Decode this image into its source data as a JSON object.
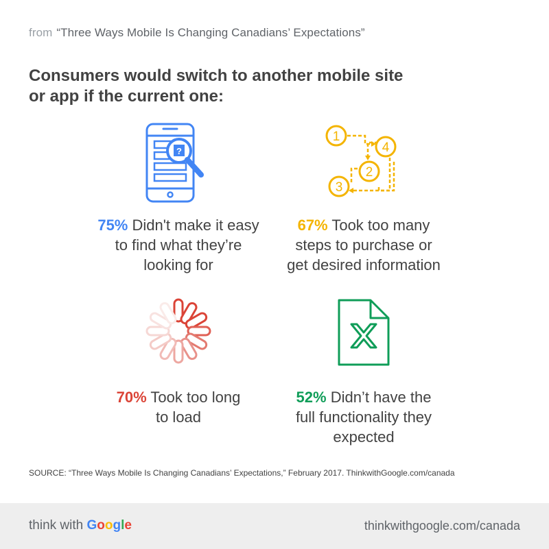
{
  "header": {
    "prefix": "from",
    "source_title": "“Three Ways Mobile Is Changing Canadians’ Expectations”",
    "headline_line1": "Consumers would switch to another mobile site",
    "headline_line2": "or app if the current one:"
  },
  "stats": [
    {
      "percent": "75%",
      "line1_rest": " Didn't make it easy",
      "line2": "to find what they’re",
      "line3": "looking for",
      "color": "#4285f4",
      "icon": "phone-search-icon"
    },
    {
      "percent": "67%",
      "line1_rest": " Took too many",
      "line2": "steps to purchase or",
      "line3": "get desired information",
      "color": "#f4b400",
      "icon": "numbered-steps-icon",
      "step_numbers": [
        "1",
        "4",
        "2",
        "3"
      ]
    },
    {
      "percent": "70%",
      "line1_rest": " Took too long",
      "line2": "to load",
      "color": "#db4437",
      "icon": "loading-spinner-icon"
    },
    {
      "percent": "52%",
      "line1_rest": " Didn’t have the",
      "line2": "full functionality they",
      "line3": "expected",
      "color": "#0f9d58",
      "icon": "broken-file-icon"
    }
  ],
  "footnote": "SOURCE:  “Three Ways Mobile Is Changing Canadians’ Expectations,” February 2017. ThinkwithGoogle.com/canada",
  "footer": {
    "brand_prefix": "think with ",
    "brand_google": [
      "G",
      "o",
      "o",
      "g",
      "l",
      "e"
    ],
    "google_colors": [
      "#4285f4",
      "#ea4335",
      "#fbbc05",
      "#4285f4",
      "#34a853",
      "#ea4335"
    ],
    "url": "thinkwithgoogle.com/canada"
  }
}
